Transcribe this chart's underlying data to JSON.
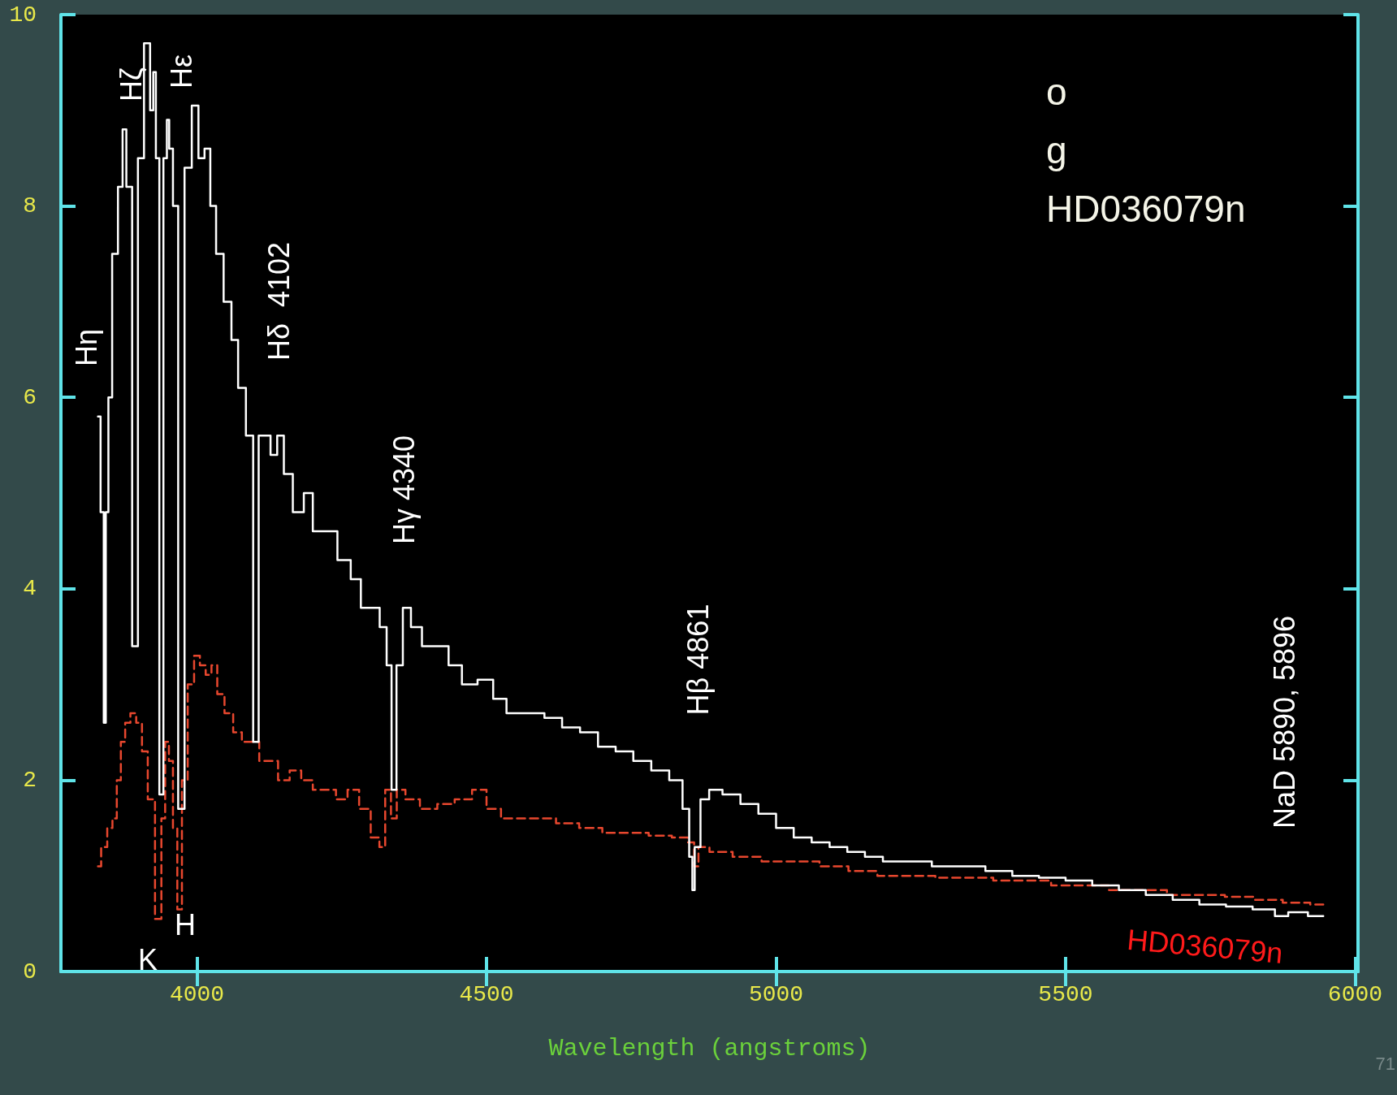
{
  "chart_data": {
    "type": "step",
    "xlabel": "Wavelength (angstroms)",
    "xlim": [
      3765,
      6005
    ],
    "xticks": [
      4000,
      4500,
      5000,
      5500,
      6000
    ],
    "ylim": [
      0,
      10
    ],
    "yticks": [
      0,
      2,
      4,
      6,
      8,
      10
    ],
    "grid": false,
    "legend": false,
    "marker": "none",
    "annotations": [
      "o",
      "g",
      "HD036079n",
      "71",
      "Hη",
      "Hζ",
      "Hε",
      "Hδ  4102",
      "Hγ 4340",
      "Hβ 4861",
      "NaD 5890, 5896",
      "H",
      "K"
    ],
    "series": [
      {
        "color": "#ffffff",
        "line_style": "solid",
        "x": [
          3829,
          3838,
          3840,
          3845,
          3849,
          3858,
          3869,
          3874,
          3882,
          3894,
          3902,
          3915,
          3923,
          3926,
          3932,
          3938,
          3946,
          3950,
          3954,
          3963,
          3972,
          3985,
          3997,
          4008,
          4018,
          4028,
          4038,
          4054,
          4065,
          4077,
          4092,
          4102,
          4111,
          4123,
          4131,
          4146,
          4154,
          4177,
          4192,
          4208,
          4231,
          4254,
          4277,
          4289,
          4308,
          4323,
          4332,
          4340,
          4349,
          4362,
          4377,
          4400,
          4423,
          4446,
          4469,
          4500,
          4523,
          4546,
          4585,
          4615,
          4646,
          4677,
          4708,
          4738,
          4769,
          4800,
          4831,
          4846,
          4854,
          4857,
          4862,
          4877,
          4892,
          4923,
          4954,
          4985,
          5015,
          5046,
          5077,
          5108,
          5138,
          5169,
          5200,
          5246,
          5292,
          5338,
          5385,
          5431,
          5477,
          5523,
          5569,
          5615,
          5662,
          5708,
          5754,
          5800,
          5846,
          5877,
          5892,
          5945
        ],
        "values": [
          5.8,
          4.8,
          2.6,
          4.8,
          6.0,
          7.5,
          8.2,
          8.8,
          8.2,
          3.4,
          8.5,
          9.7,
          9.0,
          9.4,
          8.5,
          1.85,
          8.5,
          8.9,
          8.6,
          8.0,
          1.7,
          8.4,
          9.05,
          8.5,
          8.6,
          8.0,
          7.5,
          7.0,
          6.6,
          6.1,
          5.6,
          2.4,
          5.6,
          5.6,
          5.4,
          5.6,
          5.2,
          4.8,
          5.0,
          4.6,
          4.6,
          4.3,
          4.1,
          3.8,
          3.8,
          3.6,
          3.2,
          1.9,
          3.2,
          3.8,
          3.6,
          3.4,
          3.4,
          3.2,
          3.0,
          3.05,
          2.85,
          2.7,
          2.7,
          2.65,
          2.55,
          2.5,
          2.35,
          2.3,
          2.2,
          2.1,
          2.0,
          1.7,
          1.2,
          0.85,
          1.3,
          1.8,
          1.9,
          1.85,
          1.75,
          1.65,
          1.5,
          1.4,
          1.35,
          1.3,
          1.25,
          1.2,
          1.15,
          1.15,
          1.1,
          1.1,
          1.05,
          1.0,
          0.98,
          0.95,
          0.9,
          0.85,
          0.8,
          0.75,
          0.7,
          0.68,
          0.65,
          0.58,
          0.62,
          0.58
        ]
      },
      {
        "name": "HD036079n",
        "color": "#e8472e",
        "line_style": "dashed",
        "x": [
          3829,
          3840,
          3850,
          3858,
          3865,
          3872,
          3880,
          3890,
          3900,
          3910,
          3920,
          3935,
          3942,
          3948,
          3955,
          3962,
          3970,
          3978,
          3990,
          4000,
          4010,
          4020,
          4030,
          4040,
          4055,
          4070,
          4085,
          4100,
          4115,
          4130,
          4150,
          4170,
          4190,
          4210,
          4230,
          4250,
          4270,
          4290,
          4310,
          4320,
          4330,
          4340,
          4350,
          4370,
          4400,
          4430,
          4460,
          4490,
          4510,
          4540,
          4570,
          4600,
          4640,
          4680,
          4720,
          4760,
          4800,
          4840,
          4855,
          4862,
          4870,
          4900,
          4950,
          5000,
          5050,
          5100,
          5150,
          5200,
          5250,
          5300,
          5350,
          5400,
          5450,
          5500,
          5550,
          5600,
          5650,
          5700,
          5750,
          5800,
          5850,
          5900,
          5945
        ],
        "values": [
          1.1,
          1.3,
          1.5,
          1.6,
          2.0,
          2.4,
          2.6,
          2.7,
          2.6,
          2.3,
          1.8,
          0.55,
          1.6,
          2.4,
          2.2,
          1.5,
          0.65,
          2.0,
          3.0,
          3.3,
          3.2,
          3.1,
          3.2,
          2.9,
          2.7,
          2.5,
          2.4,
          2.4,
          2.2,
          2.2,
          2.0,
          2.1,
          2.0,
          1.9,
          1.9,
          1.8,
          1.9,
          1.7,
          1.4,
          1.3,
          1.9,
          1.6,
          1.9,
          1.8,
          1.7,
          1.75,
          1.8,
          1.9,
          1.7,
          1.6,
          1.6,
          1.6,
          1.55,
          1.5,
          1.45,
          1.45,
          1.42,
          1.4,
          1.35,
          1.1,
          1.3,
          1.25,
          1.2,
          1.15,
          1.15,
          1.1,
          1.05,
          1.0,
          1.0,
          0.98,
          0.98,
          0.95,
          0.95,
          0.9,
          0.9,
          0.85,
          0.85,
          0.8,
          0.8,
          0.78,
          0.75,
          0.72,
          0.7
        ]
      }
    ]
  }
}
